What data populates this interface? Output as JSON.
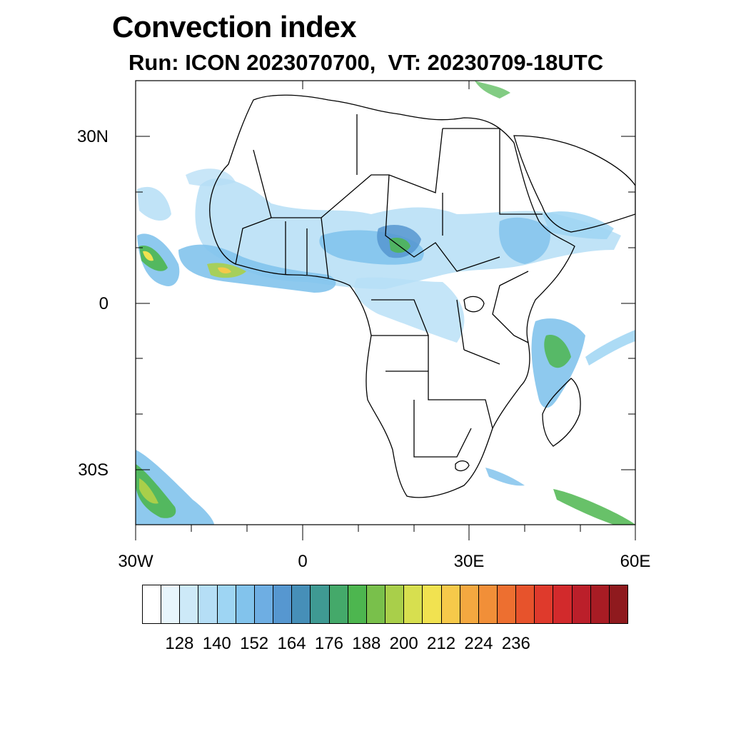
{
  "title": "Convection index",
  "subtitle": "Run: ICON 2023070700,  VT: 20230709-18UTC",
  "map": {
    "lat_range": [
      -40,
      40
    ],
    "lon_range": [
      -30,
      60
    ],
    "lat_labels": [
      "30N",
      "0",
      "30S"
    ],
    "lon_labels": [
      "30W",
      "0",
      "30E",
      "60E"
    ],
    "lat_values": [
      30,
      0,
      -30
    ],
    "lon_values": [
      -30,
      0,
      30,
      60
    ]
  },
  "colorbar": {
    "labels": [
      "128",
      "140",
      "152",
      "164",
      "176",
      "188",
      "200",
      "212",
      "224",
      "236"
    ],
    "colors": [
      "#ffffff",
      "#e8f5fc",
      "#cde9f8",
      "#b5def6",
      "#9ed5f3",
      "#82c3ec",
      "#6eaee3",
      "#5697d0",
      "#468fb8",
      "#3f9a93",
      "#44a96a",
      "#4db64f",
      "#79c04b",
      "#a9cf4a",
      "#d7df4f",
      "#f1e250",
      "#f6c94a",
      "#f4a840",
      "#f18f38",
      "#ed6f30",
      "#e7532c",
      "#df3a2c",
      "#d22a2c",
      "#bb1f2a",
      "#a81c24",
      "#8f1a1e"
    ]
  }
}
